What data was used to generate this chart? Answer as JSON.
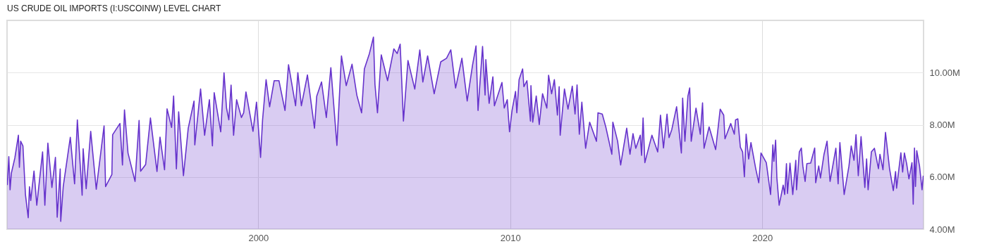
{
  "chart_data": {
    "type": "area",
    "title": "US CRUDE OIL IMPORTS (I:USCOINW) LEVEL CHART",
    "xlim": [
      1990.03,
      2026.4
    ],
    "xticks": [
      2000,
      2010,
      2020
    ],
    "ylim": [
      4,
      12
    ],
    "yticks": [
      {
        "value": 4,
        "label": "4.00M"
      },
      {
        "value": 6,
        "label": "6.00M"
      },
      {
        "value": 8,
        "label": "8.00M"
      },
      {
        "value": 10,
        "label": "10.00M"
      }
    ],
    "grid": true,
    "series": [
      {
        "color": "#6633cc",
        "x": [
          1990.04,
          1990.1,
          1990.15,
          1990.2,
          1990.34,
          1990.48,
          1990.52,
          1990.57,
          1990.66,
          1990.76,
          1990.87,
          1990.92,
          1990.97,
          1991.1,
          1991.21,
          1991.44,
          1991.53,
          1991.65,
          1991.81,
          1991.95,
          1992.02,
          1992.14,
          1992.16,
          1992.26,
          1992.54,
          1992.71,
          1992.82,
          1993.01,
          1993.05,
          1993.17,
          1993.35,
          1993.57,
          1993.88,
          1993.94,
          1994.19,
          1994.22,
          1994.51,
          1994.61,
          1994.69,
          1994.83,
          1995.11,
          1995.27,
          1995.33,
          1995.53,
          1995.72,
          1995.98,
          1996.1,
          1996.28,
          1996.38,
          1996.56,
          1996.64,
          1996.75,
          1996.84,
          1997.03,
          1997.22,
          1997.45,
          1997.48,
          1997.71,
          1997.87,
          1998.06,
          1998.18,
          1998.25,
          1998.51,
          1998.64,
          1998.74,
          1998.83,
          1998.92,
          1999.02,
          1999.14,
          1999.33,
          1999.42,
          1999.51,
          1999.79,
          1999.93,
          2000.09,
          2000.17,
          2000.31,
          2000.45,
          2000.63,
          2000.82,
          2001.06,
          2001.2,
          2001.48,
          2001.57,
          2001.71,
          2001.95,
          2002.23,
          2002.32,
          2002.51,
          2002.7,
          2002.88,
          2003.12,
          2003.3,
          2003.49,
          2003.72,
          2003.91,
          2004.1,
          2004.21,
          2004.41,
          2004.57,
          2004.63,
          2004.73,
          2004.88,
          2005.13,
          2005.38,
          2005.51,
          2005.63,
          2005.76,
          2005.94,
          2006.21,
          2006.41,
          2006.53,
          2006.72,
          2006.98,
          2007.24,
          2007.47,
          2007.64,
          2007.83,
          2008.08,
          2008.29,
          2008.5,
          2008.64,
          2008.72,
          2008.9,
          2009.0,
          2009.03,
          2009.16,
          2009.31,
          2009.37,
          2009.67,
          2009.76,
          2009.88,
          2009.97,
          2010.07,
          2010.21,
          2010.26,
          2010.35,
          2010.49,
          2010.54,
          2010.66,
          2010.8,
          2010.82,
          2010.89,
          2011.03,
          2011.15,
          2011.28,
          2011.45,
          2011.52,
          2011.64,
          2011.75,
          2011.87,
          2011.94,
          2011.98,
          2012.15,
          2012.29,
          2012.46,
          2012.57,
          2012.65,
          2012.74,
          2012.84,
          2012.99,
          2013.15,
          2013.42,
          2013.48,
          2013.65,
          2013.79,
          2014.03,
          2014.07,
          2014.26,
          2014.38,
          2014.62,
          2014.75,
          2014.87,
          2014.98,
          2015.16,
          2015.21,
          2015.27,
          2015.34,
          2015.62,
          2015.85,
          2015.96,
          2016.08,
          2016.22,
          2016.3,
          2016.41,
          2016.6,
          2016.79,
          2016.84,
          2016.93,
          2017.05,
          2017.12,
          2017.18,
          2017.37,
          2017.54,
          2017.63,
          2017.69,
          2017.89,
          2018.15,
          2018.33,
          2018.47,
          2018.52,
          2018.75,
          2018.89,
          2018.94,
          2019.03,
          2019.13,
          2019.22,
          2019.29,
          2019.36,
          2019.46,
          2019.55,
          2019.74,
          2019.86,
          2019.95,
          2020.16,
          2020.33,
          2020.42,
          2020.46,
          2020.53,
          2020.58,
          2020.67,
          2020.83,
          2020.89,
          2020.96,
          2021.0,
          2021.1,
          2021.21,
          2021.33,
          2021.36,
          2021.47,
          2021.55,
          2021.61,
          2021.7,
          2021.77,
          2021.92,
          2022.08,
          2022.12,
          2022.24,
          2022.31,
          2022.45,
          2022.57,
          2022.69,
          2022.92,
          2023.01,
          2023.08,
          2023.25,
          2023.44,
          2023.53,
          2023.64,
          2023.72,
          2023.81,
          2023.92,
          2024.07,
          2024.14,
          2024.2,
          2024.33,
          2024.45,
          2024.61,
          2024.67,
          2024.79,
          2024.89,
          2025.05,
          2025.2,
          2025.29,
          2025.33,
          2025.5,
          2025.57,
          2025.64,
          2025.73,
          2025.82,
          2025.94,
          2025.99,
          2026.04,
          2026.08,
          2026.13,
          2026.24,
          2026.34,
          2026.39
        ],
        "values": [
          5.69,
          6.78,
          5.51,
          6.14,
          6.73,
          7.6,
          6.37,
          7.37,
          7.19,
          5.33,
          4.44,
          5.63,
          5.1,
          6.23,
          4.92,
          6.96,
          4.92,
          7.3,
          5.6,
          6.75,
          4.46,
          6.31,
          4.3,
          5.64,
          7.52,
          5.74,
          8.19,
          5.3,
          7.08,
          5.55,
          7.75,
          5.53,
          7.96,
          5.63,
          6.1,
          7.62,
          8.05,
          6.46,
          8.57,
          6.92,
          5.83,
          8.17,
          6.22,
          6.48,
          8.26,
          6.21,
          7.53,
          6.28,
          8.61,
          7.9,
          9.1,
          6.31,
          8.5,
          6.05,
          7.87,
          8.91,
          7.23,
          9.37,
          7.6,
          8.96,
          7.19,
          9.23,
          7.73,
          9.99,
          8.64,
          8.19,
          9.52,
          7.6,
          8.96,
          8.28,
          8.46,
          9.26,
          7.75,
          8.87,
          6.75,
          8.19,
          9.73,
          8.69,
          9.69,
          9.69,
          8.55,
          10.3,
          8.73,
          10.0,
          8.73,
          9.91,
          7.87,
          9.1,
          9.64,
          8.28,
          10.19,
          7.21,
          10.64,
          9.5,
          10.32,
          9.14,
          8.46,
          10.14,
          10.73,
          11.36,
          9.55,
          8.46,
          10.68,
          9.69,
          10.91,
          10.73,
          11.09,
          8.14,
          10.46,
          9.37,
          10.87,
          9.64,
          10.64,
          9.19,
          10.41,
          10.55,
          10.87,
          9.41,
          10.55,
          8.91,
          10.27,
          11.02,
          8.55,
          11.0,
          9.14,
          10.5,
          8.82,
          9.84,
          8.73,
          9.62,
          8.64,
          8.96,
          7.73,
          8.55,
          9.28,
          8.46,
          9.73,
          10.14,
          9.46,
          9.69,
          8.14,
          9.5,
          8.1,
          9.1,
          8.01,
          9.19,
          8.64,
          9.9,
          9.19,
          9.73,
          8.37,
          9.46,
          7.6,
          9.37,
          8.6,
          9.48,
          8.41,
          9.53,
          7.64,
          8.87,
          7.1,
          8.1,
          7.37,
          8.46,
          8.41,
          7.92,
          6.87,
          8.1,
          7.37,
          6.46,
          7.87,
          6.87,
          7.66,
          7.1,
          7.6,
          6.83,
          8.26,
          6.55,
          7.6,
          6.96,
          8.37,
          7.11,
          8.41,
          7.51,
          7.82,
          8.69,
          6.92,
          9.02,
          7.37,
          9.1,
          9.41,
          7.37,
          8.64,
          7.64,
          8.84,
          7.1,
          7.92,
          7.05,
          8.6,
          8.37,
          7.46,
          8.05,
          7.64,
          8.19,
          8.23,
          7.14,
          6.96,
          6.01,
          7.64,
          6.69,
          7.32,
          6.32,
          5.78,
          6.92,
          6.55,
          5.33,
          7.23,
          6.6,
          7.41,
          5.96,
          4.92,
          5.69,
          5.33,
          6.51,
          5.37,
          6.53,
          5.33,
          6.64,
          5.51,
          6.96,
          7.11,
          6.42,
          5.83,
          6.51,
          6.53,
          7.11,
          5.78,
          6.42,
          5.96,
          6.87,
          7.37,
          5.83,
          7.1,
          5.74,
          7.32,
          5.33,
          6.42,
          7.19,
          6.64,
          7.62,
          6.05,
          7.55,
          5.6,
          6.69,
          5.51,
          6.96,
          7.1,
          6.32,
          6.87,
          6.28,
          7.71,
          6.32,
          5.48,
          6.21,
          5.57,
          6.93,
          6.19,
          6.92,
          6.51,
          5.93,
          6.55,
          4.96,
          7.11,
          5.64,
          7.01,
          6.42,
          5.51,
          6.05
        ]
      }
    ]
  }
}
